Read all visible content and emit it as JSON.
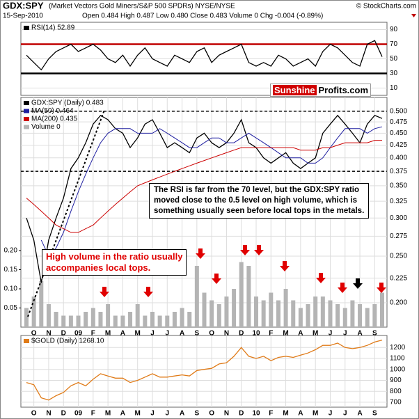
{
  "header": {
    "symbol": "GDX:SPY",
    "description": "(Market Vectors Gold Miners/S&P 500 SPDRs) NYSE/NYSE",
    "copyright": "© StockCharts.com",
    "date": "15-Sep-2010",
    "quote": "Open 0.484 High 0.487 Low 0.480 Close 0.483 Volume 0 Chg -0.004 (-0.89%)"
  },
  "logo": {
    "part1": "Sunshine",
    "part2": "Profits.com"
  },
  "annotations": {
    "note": [
      "The RSI is far from the 70 level, but the GDX:SPY ratio",
      "moved close to the 0.5 level on high volume, which is",
      "something usually seen before local tops in the metals."
    ],
    "volume_note": [
      "High volume in the ratio usually",
      "accompanies local tops."
    ]
  },
  "chart_data": [
    {
      "type": "line",
      "ylim": [
        0,
        100
      ],
      "yticks": [
        10,
        30,
        50,
        70,
        90
      ],
      "grid": true,
      "hlines": [
        {
          "value": 70,
          "color": "#c00000"
        },
        {
          "value": 30,
          "color": "#000000"
        }
      ],
      "series": [
        {
          "name": "RSI(14) 52.89",
          "color": "#000000",
          "values": [
            55,
            45,
            35,
            50,
            60,
            65,
            70,
            60,
            65,
            70,
            62,
            50,
            45,
            55,
            40,
            55,
            65,
            50,
            45,
            40,
            55,
            50,
            45,
            60,
            65,
            45,
            55,
            60,
            65,
            70,
            45,
            40,
            45,
            40,
            55,
            50,
            40,
            45,
            50,
            40,
            60,
            70,
            65,
            55,
            45,
            40,
            70,
            75,
            52.89
          ]
        }
      ]
    },
    {
      "type": "line",
      "log_scale": true,
      "ylim": [
        0.178,
        0.534
      ],
      "grid": true,
      "yticks": [
        {
          "value": 0.5,
          "label": "0.500"
        },
        0.475,
        {
          "value": 0.45,
          "label": "0.450"
        },
        0.425,
        {
          "value": 0.4,
          "label": "0.400"
        },
        0.375,
        {
          "value": 0.35,
          "label": "0.350"
        },
        0.325,
        {
          "value": 0.3,
          "label": "0.300"
        },
        0.275,
        {
          "value": 0.25,
          "label": "0.250"
        },
        0.225,
        {
          "value": 0.2,
          "label": "0.200"
        }
      ],
      "y2lim": [
        0,
        0.6
      ],
      "y2ticks": [
        0.05,
        {
          "value": 0.1,
          "label": "0.10"
        },
        0.15,
        {
          "value": 0.2,
          "label": "0.20"
        }
      ],
      "hlines": [
        {
          "value": 0.5,
          "color": "#000000"
        },
        {
          "value": 0.375,
          "color": "#000000"
        }
      ],
      "categories": [
        null,
        "O",
        null,
        "N",
        null,
        "D",
        null,
        "09",
        null,
        "F",
        null,
        "M",
        null,
        "A",
        null,
        "M",
        null,
        "J",
        null,
        "J",
        null,
        "A",
        null,
        "S",
        null,
        "O",
        null,
        "N",
        null,
        "D",
        null,
        "10",
        null,
        "F",
        null,
        "M",
        null,
        "A",
        null,
        "M",
        null,
        "J",
        null,
        "J",
        null,
        "A",
        null,
        "S",
        null
      ],
      "series": [
        {
          "name": "GDX:SPY (Daily) 0.483",
          "color": "#000000",
          "values": [
            0.3,
            0.27,
            0.22,
            0.27,
            0.3,
            0.33,
            0.38,
            0.4,
            0.43,
            0.47,
            0.49,
            0.48,
            0.46,
            0.45,
            0.42,
            0.44,
            0.47,
            0.48,
            0.45,
            0.42,
            0.43,
            0.42,
            0.41,
            0.44,
            0.45,
            0.43,
            0.42,
            0.43,
            0.45,
            0.48,
            0.43,
            0.42,
            0.4,
            0.39,
            0.4,
            0.41,
            0.39,
            0.38,
            0.39,
            0.4,
            0.45,
            0.47,
            0.49,
            0.47,
            0.45,
            0.43,
            0.47,
            0.49,
            0.483
          ]
        },
        {
          "name": "MA(50) 0.464",
          "color": "#1f1fa0",
          "values": [
            null,
            null,
            0.27,
            0.25,
            0.26,
            0.28,
            0.31,
            0.34,
            0.37,
            0.4,
            0.43,
            0.45,
            0.46,
            0.46,
            0.46,
            0.45,
            0.45,
            0.45,
            0.46,
            0.45,
            0.44,
            0.43,
            0.42,
            0.42,
            0.43,
            0.44,
            0.44,
            0.43,
            0.43,
            0.44,
            0.45,
            0.44,
            0.43,
            0.42,
            0.41,
            0.4,
            0.4,
            0.4,
            0.39,
            0.39,
            0.4,
            0.42,
            0.44,
            0.46,
            0.46,
            0.46,
            0.45,
            0.46,
            0.464
          ]
        },
        {
          "name": "MA(200) 0.435",
          "color": "#cc0000",
          "values": [
            0.33,
            0.32,
            0.31,
            0.3,
            0.29,
            0.285,
            0.28,
            0.28,
            0.285,
            0.29,
            0.3,
            0.31,
            0.32,
            0.33,
            0.34,
            0.35,
            0.355,
            0.36,
            0.365,
            0.37,
            0.375,
            0.38,
            0.385,
            0.39,
            0.395,
            0.4,
            0.405,
            0.41,
            0.415,
            0.42,
            0.42,
            0.42,
            0.42,
            0.42,
            0.42,
            0.42,
            0.42,
            0.415,
            0.415,
            0.415,
            0.42,
            0.42,
            0.425,
            0.43,
            0.43,
            0.43,
            0.43,
            0.435,
            0.435
          ]
        },
        {
          "name": "Volume 0",
          "color": "#b4b4b4",
          "axis": "y2",
          "values": [
            0.05,
            0.08,
            0.12,
            0.06,
            0.04,
            0.03,
            0.03,
            0.03,
            0.04,
            0.05,
            0.04,
            0.06,
            0.03,
            0.03,
            0.04,
            0.06,
            0.03,
            0.04,
            0.03,
            0.03,
            0.04,
            0.05,
            0.04,
            0.16,
            0.09,
            0.07,
            0.06,
            0.08,
            0.1,
            0.17,
            0.16,
            0.08,
            0.07,
            0.09,
            0.07,
            0.1,
            0.07,
            0.05,
            0.06,
            0.08,
            0.08,
            0.07,
            0.06,
            0.05,
            0.07,
            0.06,
            0.05,
            0.06,
            0.09
          ]
        }
      ]
    },
    {
      "type": "line",
      "ylim": [
        655,
        1310
      ],
      "yticks": [
        700,
        800,
        900,
        1000,
        1100,
        1200
      ],
      "grid": true,
      "categories": [
        null,
        "O",
        null,
        "N",
        null,
        "D",
        null,
        "09",
        null,
        "F",
        null,
        "M",
        null,
        "A",
        null,
        "M",
        null,
        "J",
        null,
        "J",
        null,
        "A",
        null,
        "S",
        null,
        "O",
        null,
        "N",
        null,
        "D",
        null,
        "10",
        null,
        "F",
        null,
        "M",
        null,
        "A",
        null,
        "M",
        null,
        "J",
        null,
        "J",
        null,
        "A",
        null,
        "S",
        null
      ],
      "series": [
        {
          "name": "$GOLD (Daily) 1268.10",
          "color": "#e07b18",
          "values": [
            880,
            860,
            740,
            720,
            760,
            790,
            850,
            880,
            850,
            910,
            960,
            940,
            920,
            920,
            880,
            900,
            930,
            960,
            930,
            930,
            940,
            950,
            940,
            990,
            1000,
            1010,
            1050,
            1060,
            1120,
            1200,
            1120,
            1100,
            1120,
            1080,
            1110,
            1120,
            1110,
            1130,
            1150,
            1180,
            1220,
            1220,
            1240,
            1200,
            1190,
            1200,
            1220,
            1250,
            1268.1
          ]
        }
      ]
    }
  ]
}
